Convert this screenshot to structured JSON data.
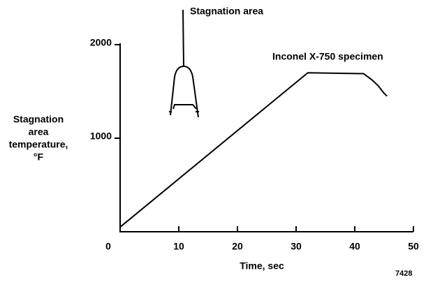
{
  "chart_data": {
    "type": "line",
    "ylabel": [
      "Stagnation",
      "area",
      "temperature,",
      "°F"
    ],
    "xlabel": "Time, sec",
    "x": [
      0,
      32,
      41.5,
      43,
      44,
      45,
      45.5
    ],
    "series": [
      {
        "name": "Inconel X-750 specimen",
        "color": "#000000",
        "values": [
          50,
          1700,
          1690,
          1620,
          1560,
          1480,
          1450
        ]
      }
    ],
    "xlim": [
      0,
      50
    ],
    "xticks": [
      0,
      10,
      20,
      30,
      40,
      50
    ],
    "ylim": [
      0,
      2000
    ],
    "yticks": [
      1000,
      2000
    ],
    "annotations": [
      "Stagnation area",
      "7428"
    ]
  }
}
